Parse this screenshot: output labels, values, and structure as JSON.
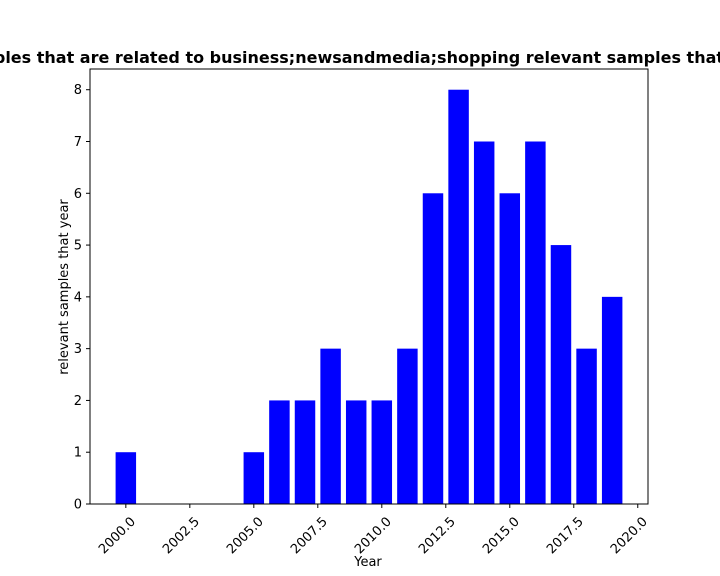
{
  "chart_data": {
    "type": "bar",
    "title": "Number of samples that are related to business;newsandmedia;shopping relevant samples that year in presence",
    "xlabel": "Year",
    "ylabel": "relevant samples that year",
    "x": [
      2000,
      2005,
      2006,
      2007,
      2008,
      2009,
      2010,
      2011,
      2012,
      2013,
      2014,
      2015,
      2016,
      2017,
      2018,
      2019
    ],
    "values": [
      1,
      1,
      2,
      2,
      3,
      2,
      2,
      3,
      6,
      8,
      7,
      6,
      7,
      5,
      3,
      4
    ],
    "xlim": [
      1998.6,
      2020.4
    ],
    "ylim": [
      0,
      8.4
    ],
    "xticks": [
      "2000.0",
      "2002.5",
      "2005.0",
      "2007.5",
      "2010.0",
      "2012.5",
      "2015.0",
      "2017.5",
      "2020.0"
    ],
    "yticks": [
      "0",
      "1",
      "2",
      "3",
      "4",
      "5",
      "6",
      "7",
      "8"
    ],
    "bar_color": "#0000ff",
    "grid": false,
    "legend": "none"
  }
}
